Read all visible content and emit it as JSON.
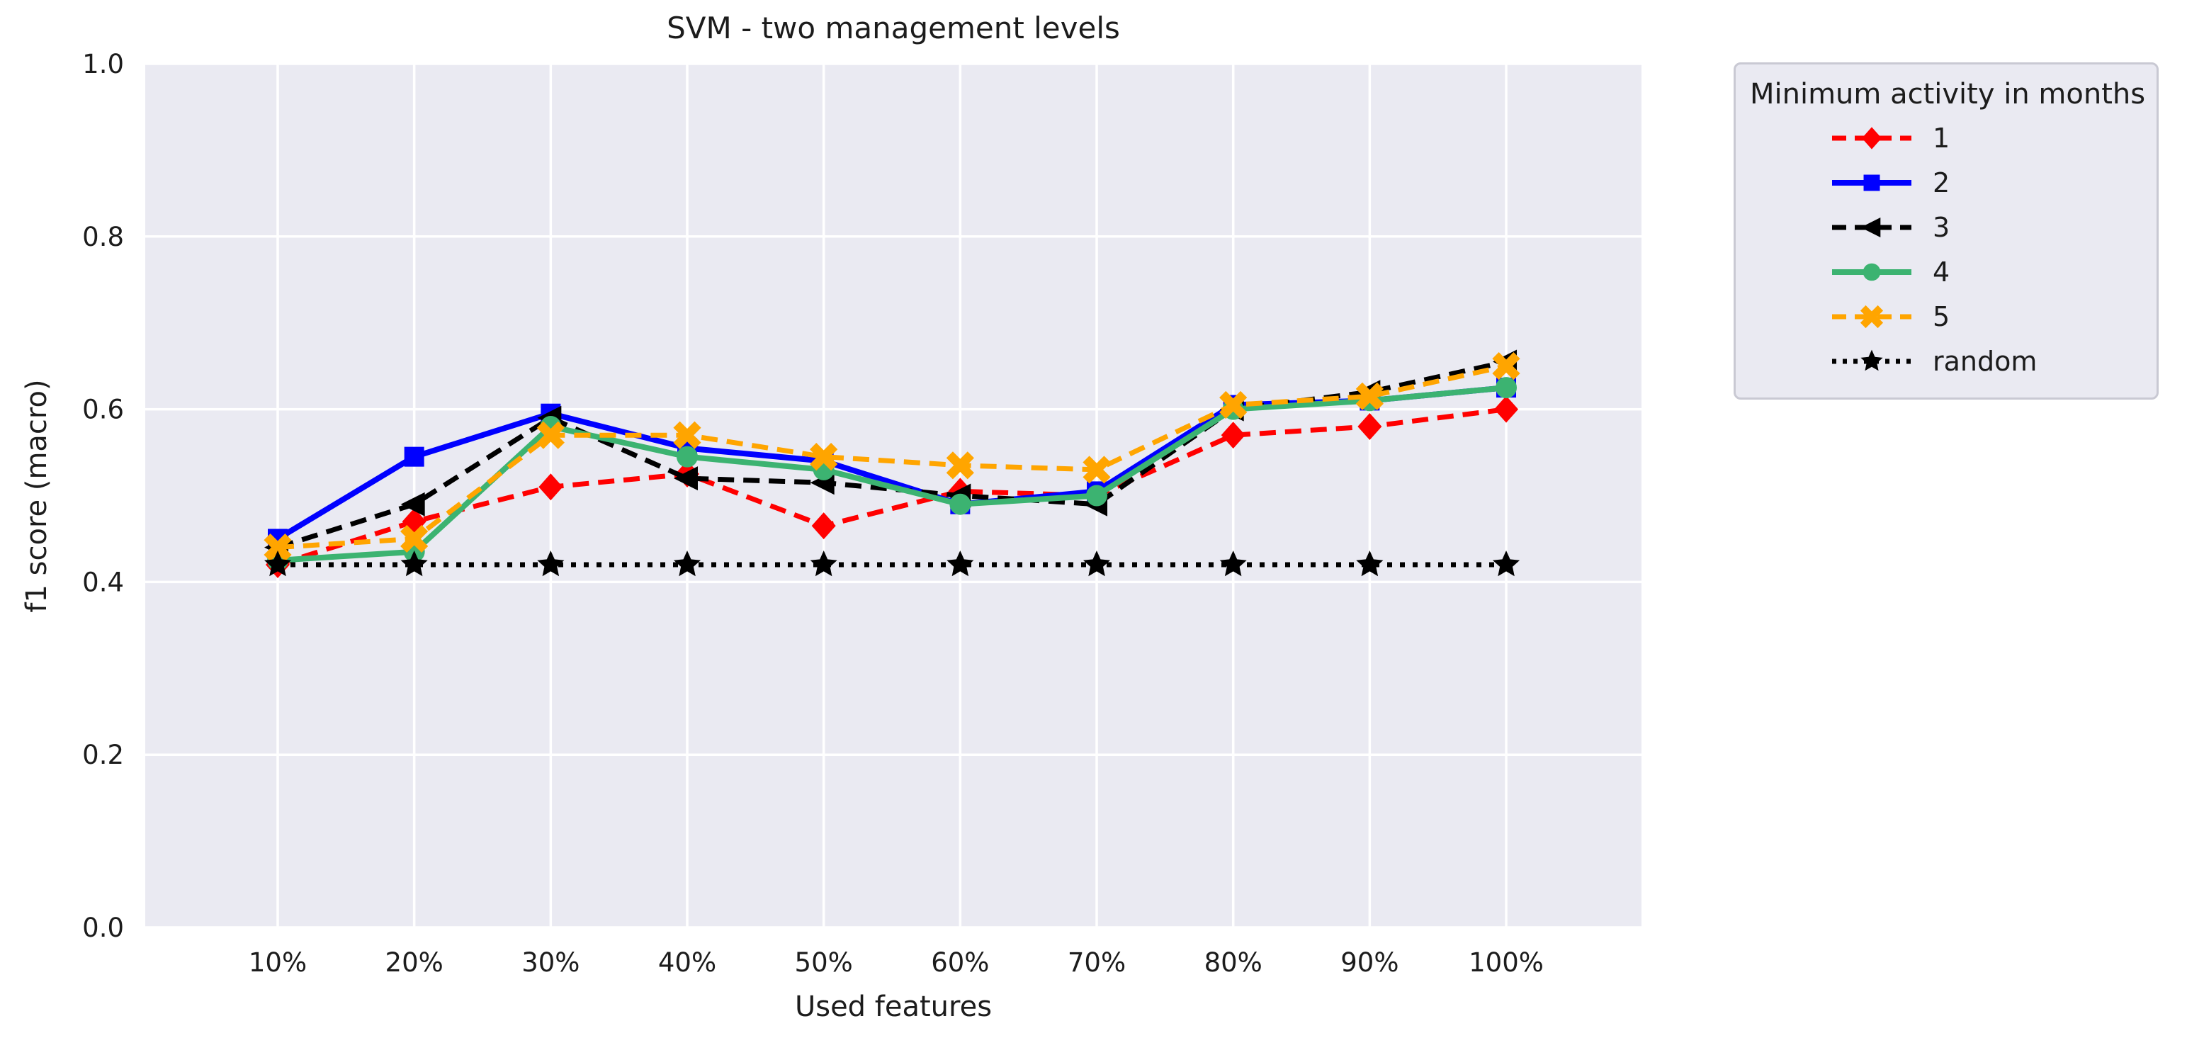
{
  "figure": {
    "title": "SVM - two management levels",
    "xlabel": "Used features",
    "ylabel": "f1 score (macro)"
  },
  "legend": {
    "title": "Minimum activity in months",
    "position": "outside-top-right"
  },
  "chart_data": {
    "type": "line",
    "title": "SVM - two management levels",
    "xlabel": "Used features",
    "ylabel": "f1 score (macro)",
    "categories": [
      "10%",
      "20%",
      "30%",
      "40%",
      "50%",
      "60%",
      "70%",
      "80%",
      "90%",
      "100%"
    ],
    "ytick_labels": [
      "0.0",
      "0.2",
      "0.4",
      "0.6",
      "0.8",
      "1.0"
    ],
    "yticks": [
      0.0,
      0.2,
      0.4,
      0.6,
      0.8,
      1.0
    ],
    "ylim": [
      0.0,
      1.0
    ],
    "grid": true,
    "plot_background": "#eaeaf2",
    "grid_color": "#ffffff",
    "legend_title": "Minimum activity in months",
    "series": [
      {
        "name": "1",
        "color": "#ff0000",
        "linestyle": "dashed",
        "marker": "diamond",
        "values": [
          0.42,
          0.47,
          0.51,
          0.525,
          0.465,
          0.505,
          0.5,
          0.57,
          0.58,
          0.6
        ]
      },
      {
        "name": "2",
        "color": "#0000ff",
        "linestyle": "solid",
        "marker": "square",
        "values": [
          0.45,
          0.545,
          0.595,
          0.555,
          0.54,
          0.49,
          0.505,
          0.605,
          0.61,
          0.625
        ]
      },
      {
        "name": "3",
        "color": "#000000",
        "linestyle": "dashed",
        "marker": "triangle-left",
        "values": [
          0.44,
          0.49,
          0.59,
          0.52,
          0.515,
          0.5,
          0.49,
          0.6,
          0.62,
          0.655
        ]
      },
      {
        "name": "4",
        "color": "#3cb371",
        "linestyle": "solid",
        "marker": "circle",
        "values": [
          0.425,
          0.435,
          0.58,
          0.545,
          0.53,
          0.49,
          0.5,
          0.6,
          0.61,
          0.625
        ]
      },
      {
        "name": "5",
        "color": "#ffa500",
        "linestyle": "dashed",
        "marker": "x",
        "values": [
          0.44,
          0.45,
          0.57,
          0.57,
          0.545,
          0.535,
          0.53,
          0.605,
          0.615,
          0.65
        ]
      },
      {
        "name": "random",
        "color": "#000000",
        "linestyle": "dotted",
        "marker": "star",
        "values": [
          0.42,
          0.42,
          0.42,
          0.42,
          0.42,
          0.42,
          0.42,
          0.42,
          0.42,
          0.42
        ]
      }
    ]
  }
}
